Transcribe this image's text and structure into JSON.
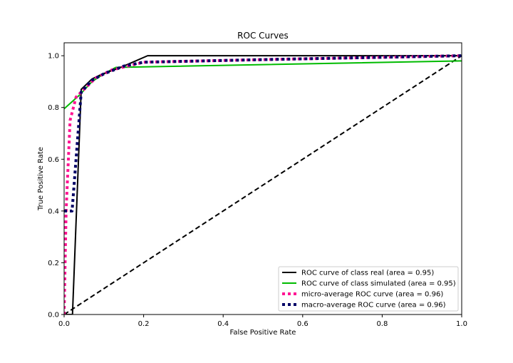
{
  "chart_data": {
    "type": "line",
    "title": "ROC Curves",
    "xlabel": "False Positive Rate",
    "ylabel": "True Positive Rate",
    "xlim": [
      0.0,
      1.0
    ],
    "ylim": [
      0.0,
      1.05
    ],
    "xticks": [
      "0.0",
      "0.2",
      "0.4",
      "0.6",
      "0.8",
      "1.0"
    ],
    "yticks": [
      "0.0",
      "0.2",
      "0.4",
      "0.6",
      "0.8",
      "1.0"
    ],
    "grid": false,
    "legend_position": "lower-right",
    "series": [
      {
        "name": "ROC curve of class real (area = 0.95)",
        "color": "#000000",
        "style": "solid",
        "points": [
          [
            0.0,
            0.0
          ],
          [
            0.021,
            0.0
          ],
          [
            0.043,
            0.87
          ],
          [
            0.07,
            0.91
          ],
          [
            0.09,
            0.925
          ],
          [
            0.15,
            0.96
          ],
          [
            0.21,
            1.0
          ],
          [
            1.0,
            1.0
          ]
        ]
      },
      {
        "name": "ROC curve of class simulated (area = 0.95)",
        "color": "#00bb00",
        "style": "solid",
        "points": [
          [
            0.0,
            0.795
          ],
          [
            0.04,
            0.85
          ],
          [
            0.07,
            0.9
          ],
          [
            0.1,
            0.93
          ],
          [
            0.13,
            0.955
          ],
          [
            1.0,
            0.98
          ]
        ]
      },
      {
        "name": "micro-average ROC curve (area = 0.96)",
        "color": "#ff1493",
        "style": "dotted",
        "points": [
          [
            0.0,
            0.0
          ],
          [
            0.005,
            0.4
          ],
          [
            0.015,
            0.75
          ],
          [
            0.03,
            0.84
          ],
          [
            0.05,
            0.87
          ],
          [
            0.08,
            0.915
          ],
          [
            0.12,
            0.945
          ],
          [
            0.2,
            0.975
          ],
          [
            0.5,
            0.985
          ],
          [
            1.0,
            1.0
          ]
        ]
      },
      {
        "name": "macro-average ROC curve (area = 0.96)",
        "color": "#000066",
        "style": "dotted",
        "points": [
          [
            0.0,
            0.4
          ],
          [
            0.02,
            0.4
          ],
          [
            0.03,
            0.6
          ],
          [
            0.043,
            0.86
          ],
          [
            0.07,
            0.905
          ],
          [
            0.1,
            0.93
          ],
          [
            0.15,
            0.96
          ],
          [
            0.2,
            0.975
          ],
          [
            0.5,
            0.985
          ],
          [
            1.0,
            1.0
          ]
        ]
      },
      {
        "name": "",
        "color": "#000000",
        "style": "dashed",
        "points": [
          [
            0.0,
            0.0
          ],
          [
            1.0,
            1.0
          ]
        ]
      }
    ]
  }
}
